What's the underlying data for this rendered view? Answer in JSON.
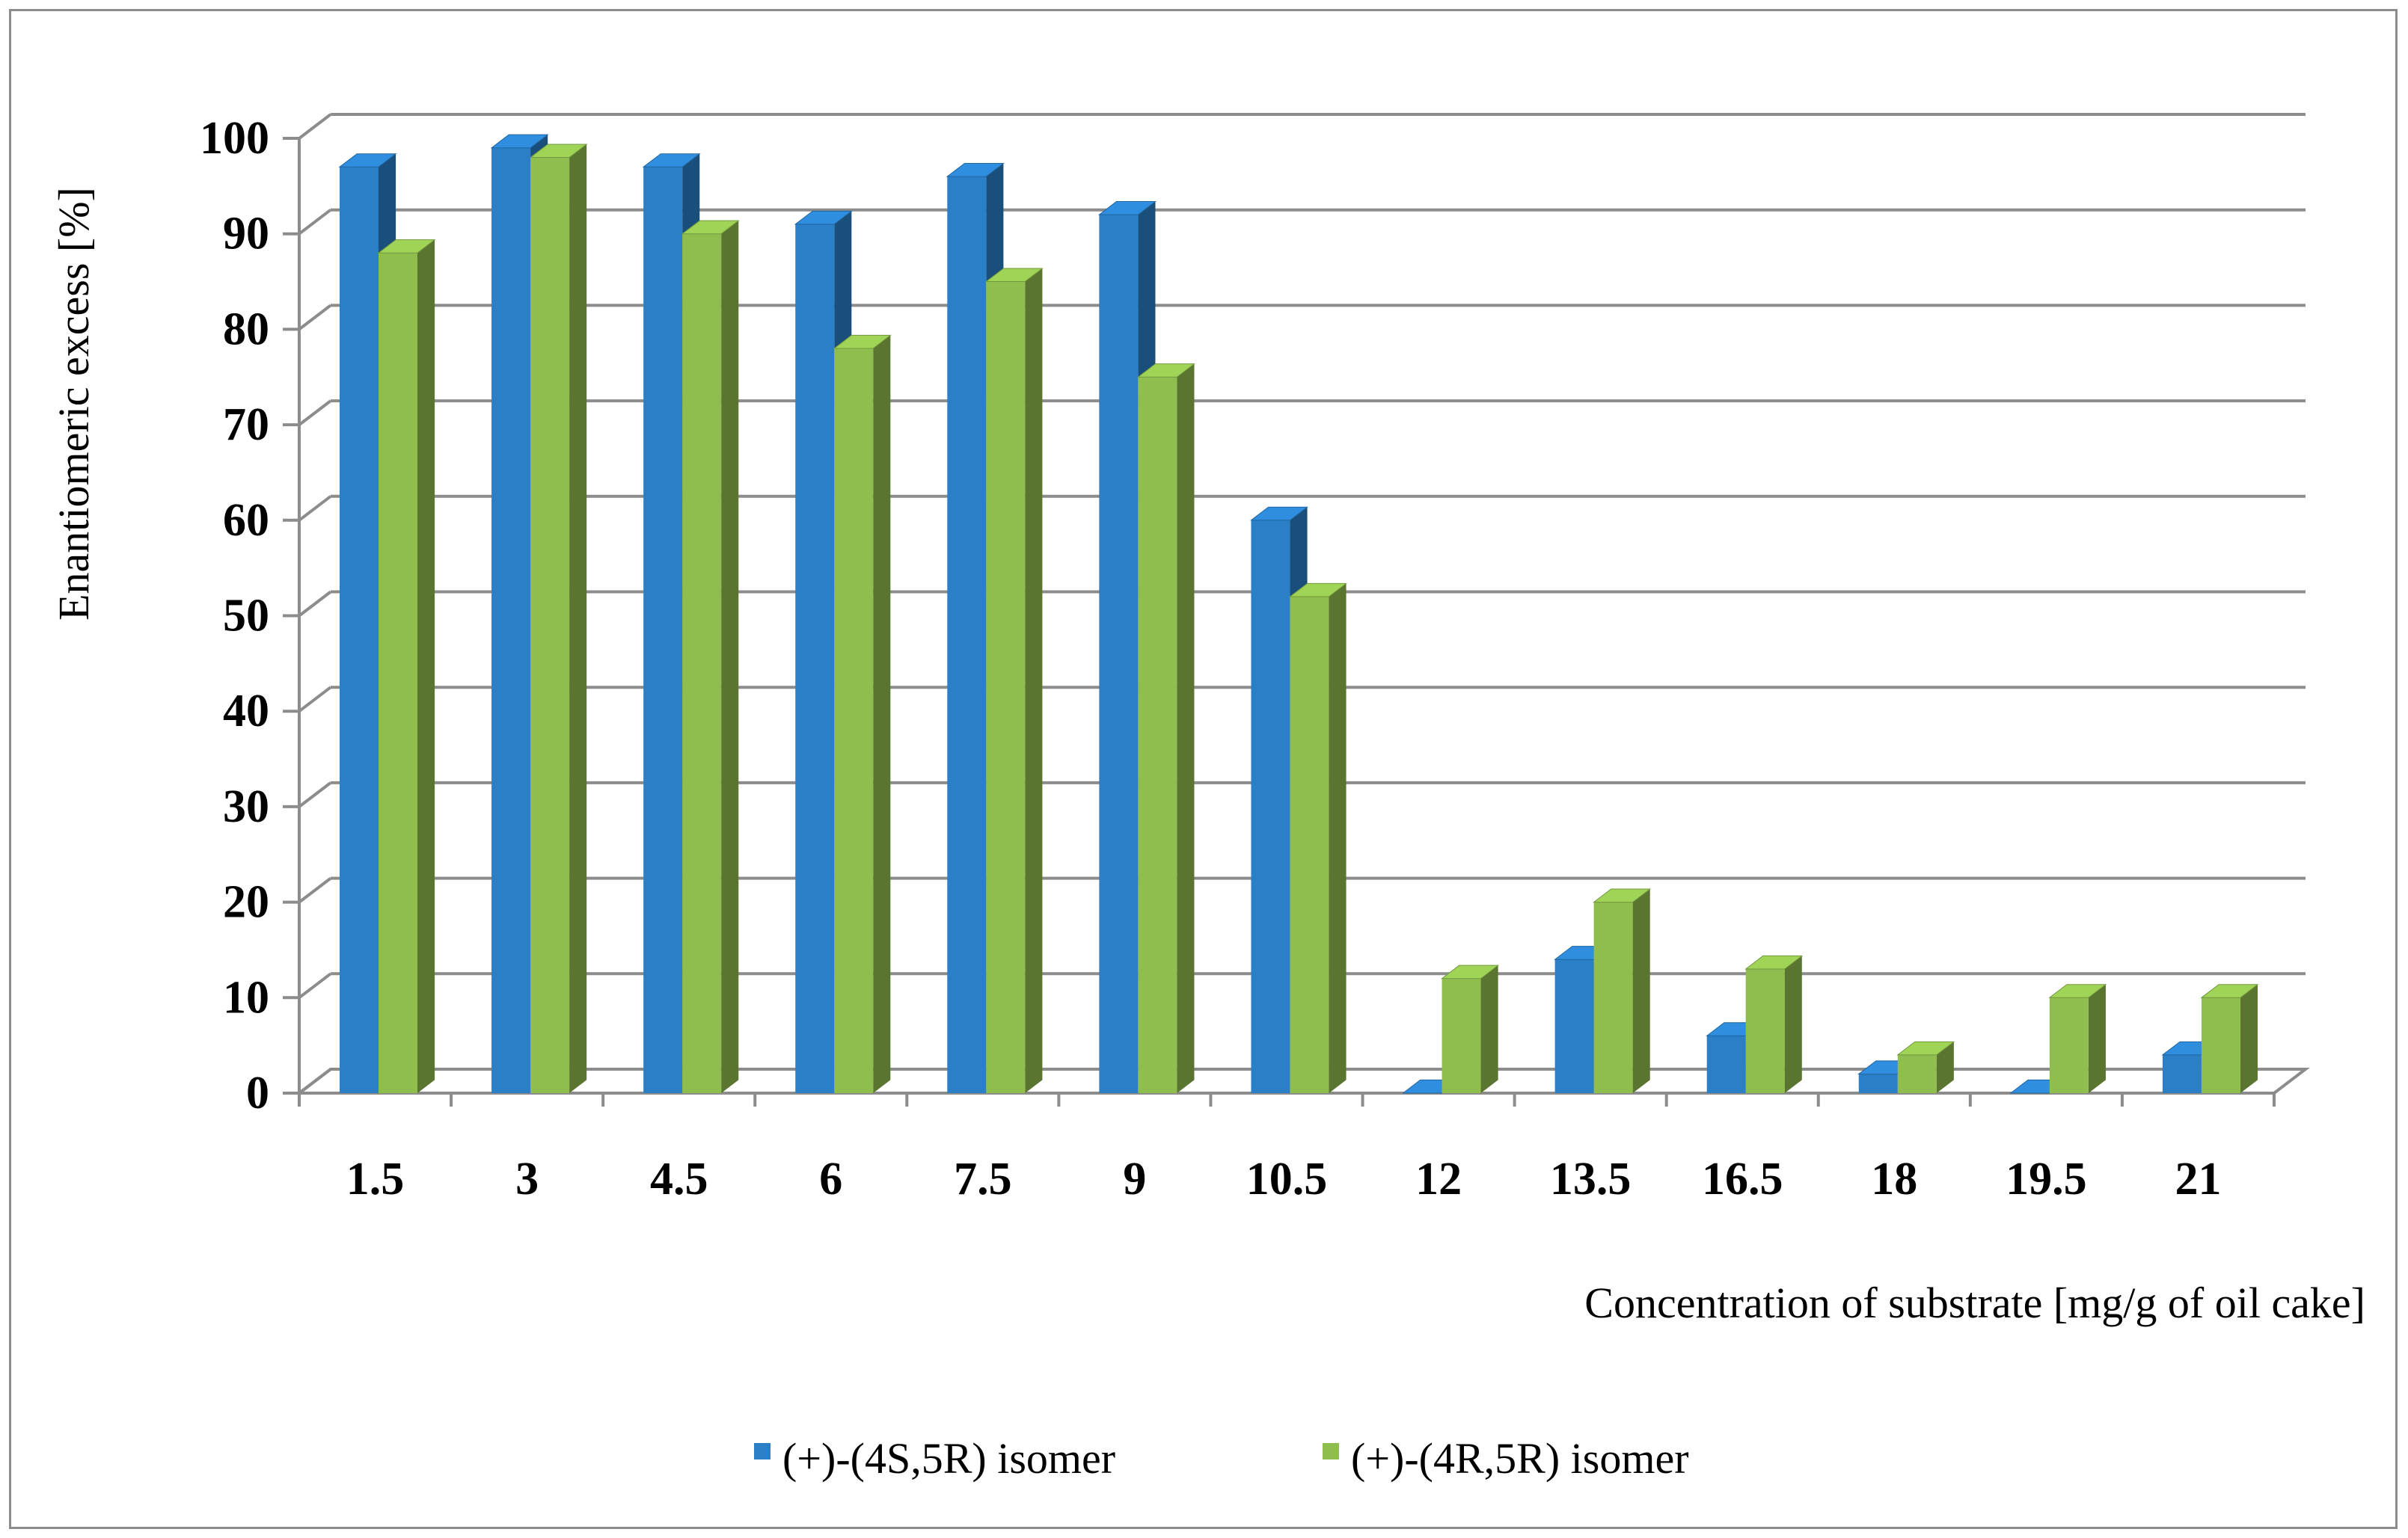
{
  "chart_data": {
    "type": "bar",
    "categories": [
      "1.5",
      "3",
      "4.5",
      "6",
      "7.5",
      "9",
      "10.5",
      "12",
      "13.5",
      "16.5",
      "18",
      "19.5",
      "21"
    ],
    "series": [
      {
        "name": "(+)-(4S,5R) isomer",
        "color": "#2a7fc7",
        "values": [
          97,
          99,
          97,
          91,
          96,
          92,
          60,
          0,
          14,
          6,
          2,
          0,
          4
        ]
      },
      {
        "name": "(+)-(4R,5R) isomer",
        "color": "#8fbd4e",
        "values": [
          88,
          98,
          90,
          78,
          85,
          75,
          52,
          12,
          20,
          13,
          4,
          10,
          10
        ]
      }
    ],
    "xlabel": "Concentration of substrate [mg/g of oil cake]",
    "ylabel": "Enantiomeric excess [%]",
    "ylim": [
      0,
      100
    ],
    "yticks": [
      "0",
      "10",
      "20",
      "30",
      "40",
      "50",
      "60",
      "70",
      "80",
      "90",
      "100"
    ],
    "grid": true,
    "legend_position": "bottom"
  }
}
